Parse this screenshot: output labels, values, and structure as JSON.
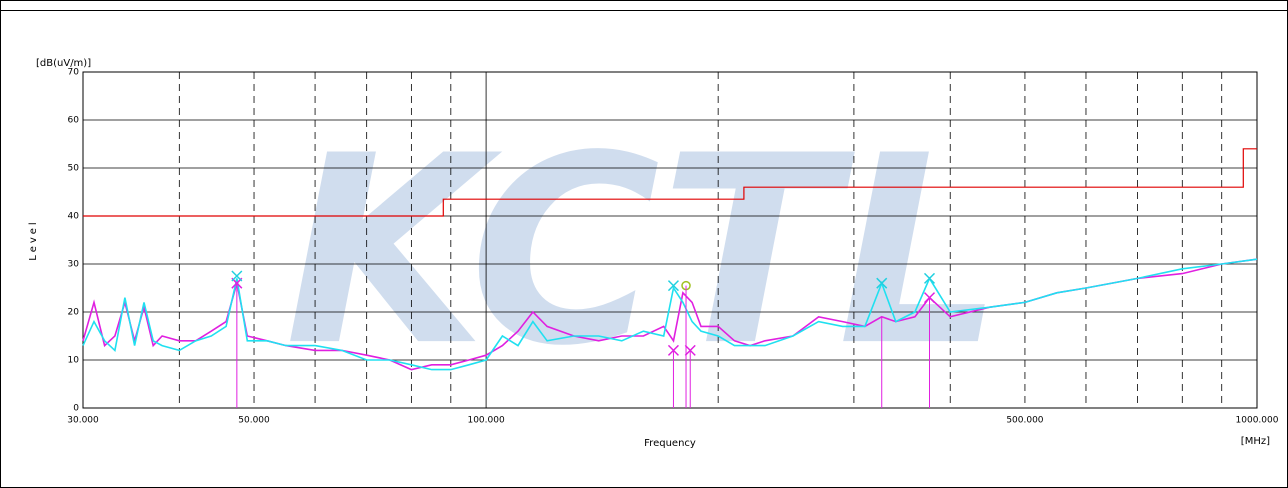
{
  "chart_data": {
    "type": "line",
    "y_unit": "[dB(uV/m)]",
    "y_label": "Level",
    "x_label": "Frequency",
    "x_unit": "[MHz]",
    "watermark": "KCTL",
    "log_x": true,
    "grid": true,
    "xlim": [
      30,
      1000
    ],
    "ylim": [
      0,
      70
    ],
    "yticks": [
      0,
      10,
      20,
      30,
      40,
      50,
      60,
      70
    ],
    "xticks": [
      {
        "value": 30,
        "label": "30.000"
      },
      {
        "value": 50,
        "label": "50.000"
      },
      {
        "value": 100,
        "label": "100.000"
      },
      {
        "value": 500,
        "label": "500.000"
      },
      {
        "value": 1000,
        "label": "1000.000"
      }
    ],
    "x_minor_grid": [
      40,
      50,
      60,
      70,
      80,
      90,
      200,
      300,
      400,
      500,
      600,
      700,
      800,
      900
    ],
    "x_major_grid": [
      100
    ],
    "x": [
      30,
      31,
      32,
      33,
      34,
      35,
      36,
      37,
      38,
      40,
      42,
      44,
      46,
      47.5,
      49,
      52,
      55,
      60,
      65,
      70,
      75,
      80,
      85,
      90,
      95,
      100,
      105,
      110,
      115,
      120,
      130,
      140,
      150,
      160,
      170,
      175,
      180,
      185,
      190,
      200,
      210,
      220,
      230,
      250,
      270,
      290,
      310,
      326,
      340,
      360,
      376,
      400,
      450,
      500,
      550,
      600,
      700,
      800,
      900,
      1000
    ],
    "series": [
      {
        "color": "#e020e0",
        "values": [
          14,
          22,
          13,
          15,
          22,
          14,
          21,
          13,
          15,
          14,
          14,
          16,
          18,
          26,
          15,
          14,
          13,
          12,
          12,
          11,
          10,
          8,
          9,
          9,
          10,
          11,
          13,
          16,
          20,
          17,
          15,
          14,
          15,
          15,
          17,
          14,
          24,
          22,
          17,
          17,
          14,
          13,
          14,
          15,
          19,
          18,
          17,
          19,
          18,
          19,
          23,
          19,
          21,
          22,
          24,
          25,
          27,
          28,
          30,
          31
        ]
      },
      {
        "color": "#20e0f0",
        "values": [
          13,
          18,
          14,
          12,
          23,
          13,
          22,
          14,
          13,
          12,
          14,
          15,
          17,
          27,
          14,
          14,
          13,
          13,
          12,
          10,
          10,
          9,
          8,
          8,
          9,
          10,
          15,
          13,
          18,
          14,
          15,
          15,
          14,
          16,
          15,
          25,
          22,
          18,
          16,
          15,
          13,
          13,
          13,
          15,
          18,
          17,
          17,
          26,
          18,
          20,
          27,
          20,
          21,
          22,
          24,
          25,
          27,
          29,
          30,
          31
        ]
      }
    ],
    "limit": {
      "color": "#e00000",
      "x": [
        30,
        88,
        88,
        216,
        216,
        960,
        960,
        1000
      ],
      "values": [
        40,
        40,
        43.5,
        43.5,
        46,
        46,
        54,
        54
      ]
    },
    "markers": [
      {
        "x": 47.5,
        "value": 26,
        "color": "#e020e0",
        "shape": "x",
        "stick": true
      },
      {
        "x": 47.5,
        "value": 27.5,
        "color": "#20d0e0",
        "shape": "x",
        "stick": false
      },
      {
        "x": 175,
        "value": 25.5,
        "color": "#20d0e0",
        "shape": "x",
        "stick": false
      },
      {
        "x": 181.7,
        "value": 25.5,
        "color": "#a0c020",
        "shape": "o",
        "stick": false
      },
      {
        "x": 175,
        "value": 12,
        "color": "#e020e0",
        "shape": "x",
        "stick": true
      },
      {
        "x": 184,
        "value": 12,
        "color": "#e020e0",
        "shape": "x",
        "stick": true
      },
      {
        "x": 181.7,
        "value": 25.5,
        "color": "#e020e0",
        "shape": "none",
        "stick": true
      },
      {
        "x": 326,
        "value": 26,
        "color": "#20d0e0",
        "shape": "x",
        "stick": false
      },
      {
        "x": 326,
        "value": 19,
        "color": "#e020e0",
        "shape": "none",
        "stick": true
      },
      {
        "x": 376,
        "value": 23,
        "color": "#e020e0",
        "shape": "x",
        "stick": true
      },
      {
        "x": 376,
        "value": 27,
        "color": "#20d0e0",
        "shape": "x",
        "stick": false
      }
    ]
  }
}
